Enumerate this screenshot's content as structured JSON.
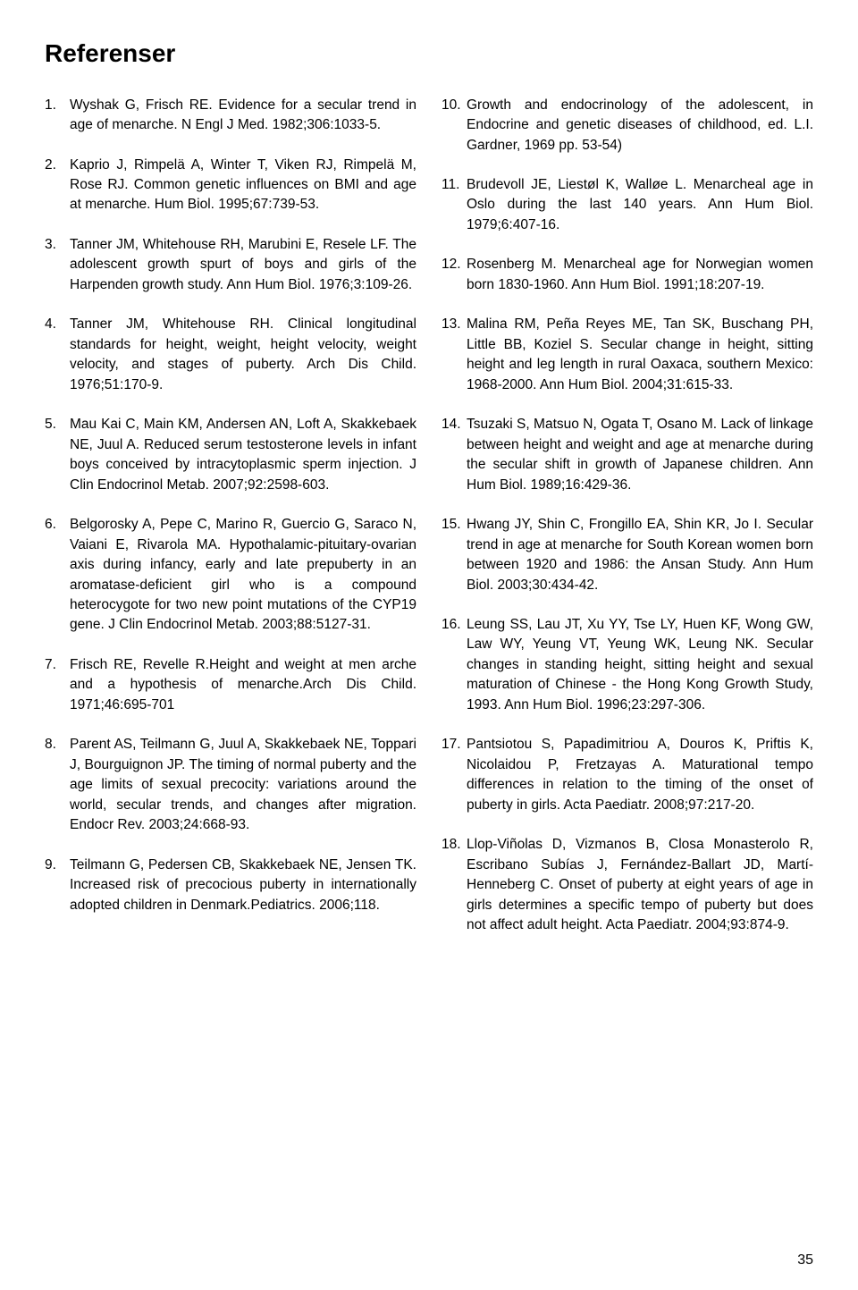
{
  "heading": "Referenser",
  "page_number": "35",
  "left_refs": [
    {
      "n": "1.",
      "t": "Wyshak G, Frisch RE. Evidence for a secular trend in age of menarche. N Engl J Med. 1982;306:1033-5."
    },
    {
      "n": "2.",
      "t": "Kaprio J, Rimpelä A, Winter T, Viken RJ, Rimpelä M, Rose RJ. Common genetic influences on BMI and age at menarche. Hum Biol. 1995;67:739-53."
    },
    {
      "n": "3.",
      "t": "Tanner JM, Whitehouse RH, Marubini E, Resele LF. The adolescent growth spurt of boys and girls of the Harpenden growth study. Ann Hum Biol. 1976;3:109-26."
    },
    {
      "n": "4.",
      "t": "Tanner JM, Whitehouse RH. Clinical longitudinal standards for height, weight, height velocity, weight velocity, and stages of puberty. Arch Dis Child. 1976;51:170-9."
    },
    {
      "n": "5.",
      "t": "Mau Kai C, Main KM, Andersen AN, Loft A, Skakkebaek NE, Juul A. Reduced serum testosterone levels in infant boys conceived by intracytoplasmic sperm injection. J Clin Endocrinol Metab. 2007;92:2598-603."
    },
    {
      "n": "6.",
      "t": "Belgorosky A, Pepe C, Marino R, Guercio G, Saraco N, Vaiani E, Rivarola MA. Hypothalamic-pituitary-ovarian axis during infancy, early and late prepuberty in an aromatase-deficient girl who is a compound heterocygote for two new point mutations of the CYP19 gene. J Clin Endocrinol Metab. 2003;88:5127-31."
    },
    {
      "n": "7.",
      "t": "Frisch RE, Revelle R.Height and weight at men arche and a hypothesis of menarche.Arch Dis Child. 1971;46:695-701"
    },
    {
      "n": "8.",
      "t": "Parent AS, Teilmann G, Juul A, Skakkebaek NE, Toppari J, Bourguignon JP. The timing of normal puberty and the age limits of sexual precocity: variations around the world, secular trends, and changes after migration. Endocr Rev. 2003;24:668-93."
    },
    {
      "n": "9.",
      "t": "Teilmann G, Pedersen CB, Skakkebaek NE, Jensen TK. Increased risk of precocious puberty in internationally adopted children in Denmark.Pediatrics. 2006;118."
    }
  ],
  "right_refs": [
    {
      "n": "10.",
      "t": "Growth and endocrinology of the adolescent, in Endocrine and genetic diseases of childhood, ed. L.I. Gardner, 1969 pp. 53-54)"
    },
    {
      "n": "11.",
      "t": "Brudevoll JE, Liestøl K, Walløe L. Menarcheal age in Oslo during the last 140 years. Ann Hum Biol. 1979;6:407-16."
    },
    {
      "n": "12.",
      "t": "Rosenberg M. Menarcheal age for Norwegian women born 1830-1960. Ann Hum Biol. 1991;18:207-19."
    },
    {
      "n": "13.",
      "t": "Malina RM, Peña Reyes ME, Tan SK, Buschang PH, Little BB, Koziel S. Secular change in height, sitting height and leg length in rural Oaxaca, southern Mexico: 1968-2000. Ann Hum Biol. 2004;31:615-33."
    },
    {
      "n": "14.",
      "t": "Tsuzaki S, Matsuo N, Ogata T, Osano M. Lack of linkage between height and weight and age at menarche during the secular shift in growth of Japanese children. Ann Hum Biol. 1989;16:429-36."
    },
    {
      "n": "15.",
      "t": "Hwang JY, Shin C, Frongillo EA, Shin KR, Jo I. Secular trend in age at menarche for South Korean women born between 1920 and 1986: the Ansan Study. Ann Hum Biol. 2003;30:434-42."
    },
    {
      "n": "16.",
      "t": "Leung SS, Lau JT, Xu YY, Tse LY, Huen KF, Wong GW, Law WY, Yeung VT, Yeung WK, Leung NK. Secular changes in standing height, sitting height and sexual maturation of Chinese - the Hong Kong Growth Study, 1993. Ann Hum Biol. 1996;23:297-306."
    },
    {
      "n": "17.",
      "t": "Pantsiotou S, Papadimitriou A, Douros K, Priftis K, Nicolaidou P, Fretzayas A. Maturational tempo differences in relation to the timing of the onset of puberty in girls. Acta Paediatr. 2008;97:217-20."
    },
    {
      "n": "18.",
      "t": "Llop-Viñolas D, Vizmanos B, Closa Monasterolo R, Escribano Subías J, Fernández-Ballart JD, Martí-Henneberg C. Onset of puberty at eight years of age in girls determines a specific tempo of puberty but does not affect adult height. Acta Paediatr. 2004;93:874-9."
    }
  ]
}
